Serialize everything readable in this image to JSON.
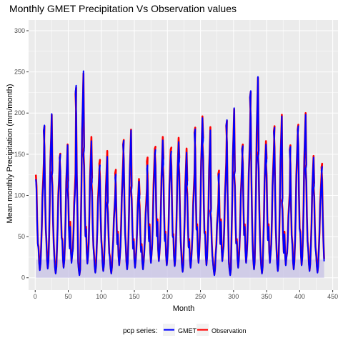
{
  "chart_data": {
    "type": "line",
    "title": "Monthly GMET Precipitation Vs Observation values",
    "xlabel": "Month",
    "ylabel": "Mean monthly Precipitation (mm/month)",
    "xlim": [
      -10,
      458
    ],
    "ylim": [
      -15,
      313
    ],
    "x_ticks": [
      0,
      50,
      100,
      150,
      200,
      250,
      300,
      350,
      400,
      450
    ],
    "y_ticks": [
      0,
      50,
      100,
      150,
      200,
      250,
      300
    ],
    "grid": true,
    "legend": {
      "title": "pcp series:",
      "placement": "bottom",
      "entries": [
        "GMET",
        "Observation"
      ]
    },
    "colors": {
      "gmet": "#0000ff",
      "observation": "#ff0000",
      "panel": "#ebebeb",
      "grid": "#ffffff",
      "ribbon": "#c9c4e6"
    },
    "series": [
      {
        "name": "GMET",
        "peaks": [
          133,
          199,
          137,
          161,
          118,
          251,
          166,
          125,
          147,
          98,
          135,
          179,
          117,
          104,
          147,
          167,
          148,
          165,
          152,
          122,
          194,
          179,
          87,
          136,
          206,
          138,
          172,
          244,
          162,
          152,
          196,
          100,
          171,
          198,
          146,
          120,
          145
        ],
        "troughs": [
          9,
          11,
          5,
          12,
          18,
          3,
          17,
          6,
          8,
          5,
          15,
          10,
          12,
          10,
          18,
          20,
          15,
          14,
          7,
          12,
          18,
          15,
          3,
          20,
          3,
          12,
          18,
          10,
          5,
          18,
          8,
          15,
          10,
          15,
          8,
          6,
          4
        ]
      },
      {
        "name": "Observation",
        "peaks": [
          139,
          198,
          140,
          162,
          127,
          248,
          171,
          131,
          154,
          100,
          141,
          180,
          120,
          109,
          157,
          171,
          156,
          170,
          157,
          127,
          196,
          183,
          90,
          140,
          205,
          140,
          174,
          243,
          166,
          156,
          198,
          104,
          173,
          200,
          148,
          124,
          149
        ],
        "troughs": [
          10,
          12,
          6,
          13,
          20,
          4,
          18,
          7,
          9,
          6,
          16,
          11,
          13,
          11,
          19,
          21,
          16,
          15,
          8,
          13,
          19,
          16,
          4,
          21,
          4,
          13,
          19,
          11,
          6,
          19,
          9,
          16,
          11,
          16,
          9,
          7,
          5
        ]
      }
    ]
  }
}
